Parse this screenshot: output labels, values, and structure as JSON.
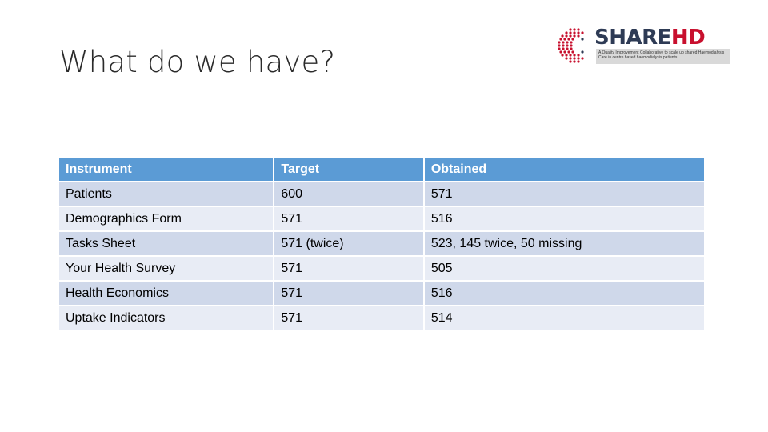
{
  "slide": {
    "title": "What do we have?"
  },
  "logo": {
    "wordmark_main": "SHARE",
    "wordmark_accent": "HD",
    "tagline": "A Quality Improvement Collaborative to scale up shared Haemodialysis Care in centre based haemodialysis patients",
    "colors": {
      "main": "#2e3b55",
      "accent": "#c8102e"
    }
  },
  "table": {
    "headers": [
      "Instrument",
      "Target",
      "Obtained"
    ],
    "rows": [
      [
        "Patients",
        "600",
        "571"
      ],
      [
        "Demographics Form",
        "571",
        "516"
      ],
      [
        "Tasks Sheet",
        "571 (twice)",
        "523, 145 twice, 50 missing"
      ],
      [
        "Your Health Survey",
        "571",
        "505"
      ],
      [
        "Health Economics",
        "571",
        "516"
      ],
      [
        "Uptake Indicators",
        "571",
        "514"
      ]
    ],
    "colors": {
      "header": "#5b9bd5",
      "row_odd": "#cfd8ea",
      "row_even": "#e8ecf5"
    }
  }
}
